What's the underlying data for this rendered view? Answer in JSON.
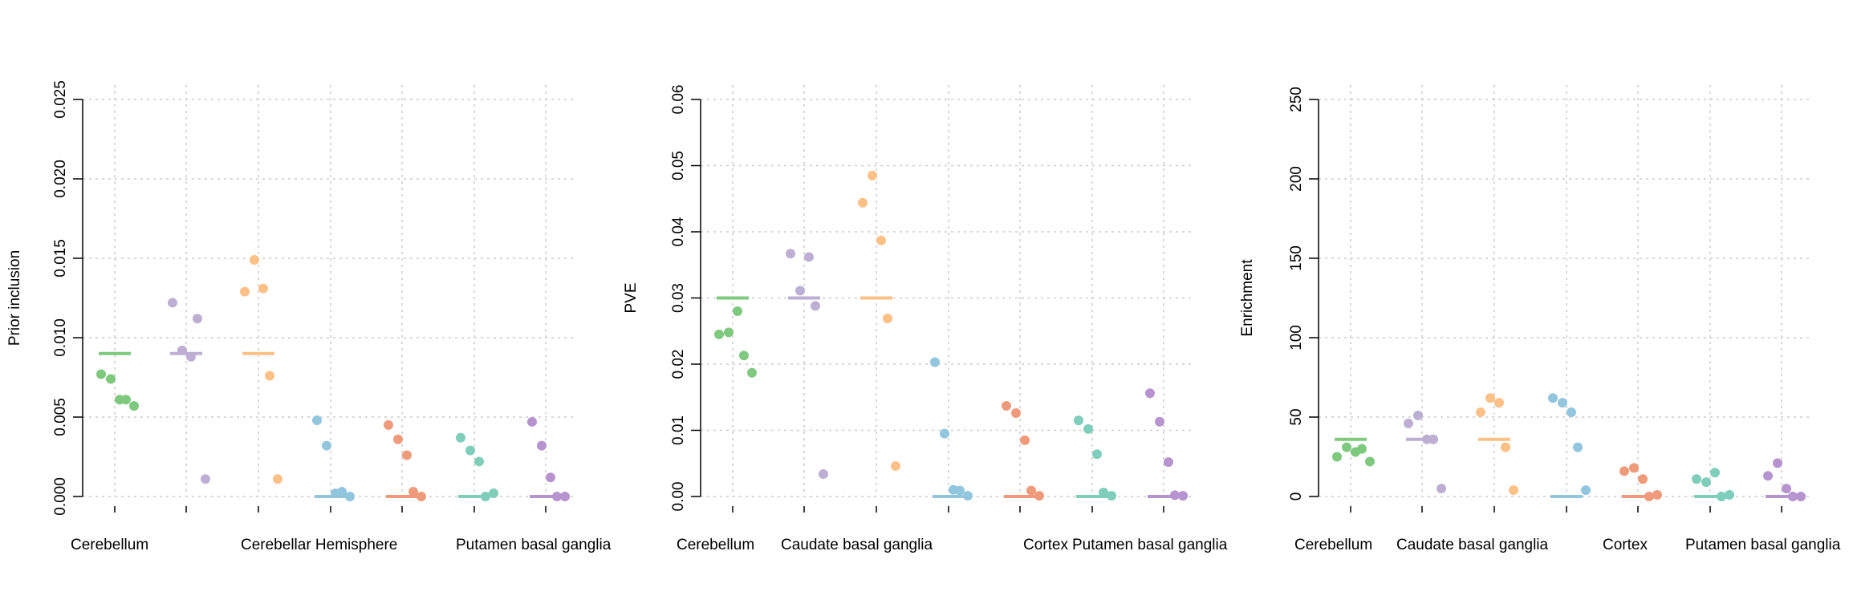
{
  "chart_data": [
    {
      "type": "scatter",
      "title": "",
      "xlabel": "",
      "ylabel": "Prior inclusion",
      "ylim": [
        0,
        0.025
      ],
      "yticks": [
        "0.000",
        "0.005",
        "0.010",
        "0.015",
        "0.020",
        "0.025"
      ],
      "category_labels": [
        "Cerebellum",
        "Cerebellar Hemisphere",
        "Putamen basal ganglia"
      ],
      "grid": true,
      "groups": [
        {
          "color": "#7fc97f",
          "median": 0.009,
          "points": [
            0.0077,
            0.0074,
            0.0061,
            0.0061,
            0.0057
          ]
        },
        {
          "color": "#beaed4",
          "median": 0.009,
          "points": [
            0.0122,
            0.0092,
            0.0088,
            0.0112,
            0.0011
          ]
        },
        {
          "color": "#fdc086",
          "median": 0.009,
          "points": [
            0.0129,
            0.0149,
            0.0131,
            0.0076,
            0.0011
          ]
        },
        {
          "color": "#92c5de",
          "median": 0.0,
          "points": [
            0.0048,
            0.0032,
            0.0002,
            0.0003,
            0.0
          ]
        },
        {
          "color": "#ef9a7a",
          "median": 0.0,
          "points": [
            0.0045,
            0.0036,
            0.0026,
            0.0003,
            0.0
          ]
        },
        {
          "color": "#7fcdbb",
          "median": 0.0,
          "points": [
            0.0037,
            0.0029,
            0.0022,
            0.0,
            0.0002
          ]
        },
        {
          "color": "#b794d0",
          "median": 0.0,
          "points": [
            0.0047,
            0.0032,
            0.0012,
            0.0,
            0.0
          ]
        }
      ]
    },
    {
      "type": "scatter",
      "title": "",
      "xlabel": "",
      "ylabel": "PVE",
      "ylim": [
        0,
        0.06
      ],
      "yticks": [
        "0.00",
        "0.01",
        "0.02",
        "0.03",
        "0.04",
        "0.05",
        "0.06"
      ],
      "category_labels": [
        "Cerebellum",
        "Caudate basal ganglia",
        "Cortex",
        "Putamen basal ganglia"
      ],
      "grid": true,
      "groups": [
        {
          "color": "#7fc97f",
          "median": 0.03,
          "points": [
            0.0245,
            0.0248,
            0.028,
            0.0213,
            0.0187
          ]
        },
        {
          "color": "#beaed4",
          "median": 0.03,
          "points": [
            0.0367,
            0.0311,
            0.0362,
            0.0288,
            0.0034
          ]
        },
        {
          "color": "#fdc086",
          "median": 0.03,
          "points": [
            0.0444,
            0.0485,
            0.0387,
            0.0269,
            0.0046
          ]
        },
        {
          "color": "#92c5de",
          "median": 0.0,
          "points": [
            0.0203,
            0.0095,
            0.001,
            0.0009,
            0.0001
          ]
        },
        {
          "color": "#ef9a7a",
          "median": 0.0,
          "points": [
            0.0137,
            0.0126,
            0.0085,
            0.0009,
            0.0001
          ]
        },
        {
          "color": "#7fcdbb",
          "median": 0.0,
          "points": [
            0.0115,
            0.0102,
            0.0064,
            0.0006,
            0.0001
          ]
        },
        {
          "color": "#b794d0",
          "median": 0.0,
          "points": [
            0.0156,
            0.0113,
            0.0052,
            0.0002,
            0.0001
          ]
        }
      ]
    },
    {
      "type": "scatter",
      "title": "",
      "xlabel": "",
      "ylabel": "Enrichment",
      "ylim": [
        0,
        250
      ],
      "yticks": [
        "0",
        "50",
        "100",
        "150",
        "200",
        "250"
      ],
      "category_labels": [
        "Cerebellum",
        "Caudate basal ganglia",
        "Cortex",
        "Putamen basal ganglia"
      ],
      "grid": true,
      "groups": [
        {
          "color": "#7fc97f",
          "median": 36,
          "points": [
            25,
            31,
            28,
            30,
            22
          ]
        },
        {
          "color": "#beaed4",
          "median": 36,
          "points": [
            46,
            51,
            36,
            36,
            5
          ]
        },
        {
          "color": "#fdc086",
          "median": 36,
          "points": [
            53,
            62,
            59,
            31,
            4
          ]
        },
        {
          "color": "#92c5de",
          "median": 0,
          "points": [
            62,
            59,
            53,
            31,
            4
          ]
        },
        {
          "color": "#ef9a7a",
          "median": 0,
          "points": [
            16,
            18,
            11,
            0,
            1
          ]
        },
        {
          "color": "#7fcdbb",
          "median": 0,
          "points": [
            11,
            9,
            15,
            0,
            1
          ]
        },
        {
          "color": "#b794d0",
          "median": 0,
          "points": [
            13,
            21,
            5,
            0,
            0
          ]
        }
      ]
    }
  ]
}
